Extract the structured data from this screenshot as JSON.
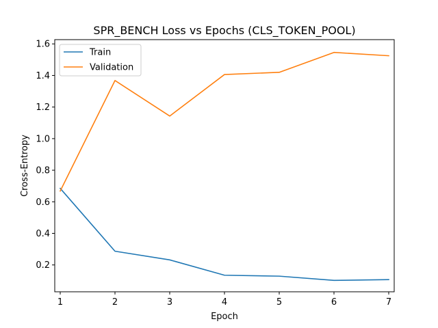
{
  "chart_data": {
    "type": "line",
    "title": "SPR_BENCH Loss vs Epochs (CLS_TOKEN_POOL)",
    "xlabel": "Epoch",
    "ylabel": "Cross-Entropy",
    "x": [
      1,
      2,
      3,
      4,
      5,
      6,
      7
    ],
    "xlim": [
      0.9,
      7.1
    ],
    "ylim": [
      0.03,
      1.627
    ],
    "xticks": [
      1,
      2,
      3,
      4,
      5,
      6,
      7
    ],
    "yticks": [
      0.2,
      0.4,
      0.6,
      0.8,
      1.0,
      1.2,
      1.4,
      1.6
    ],
    "ytick_labels": [
      "0.2",
      "0.4",
      "0.6",
      "0.8",
      "1.0",
      "1.2",
      "1.4",
      "1.6"
    ],
    "grid": false,
    "legend_position": "top-left",
    "series": [
      {
        "name": "Train",
        "color": "#1f77b4",
        "values": [
          0.685,
          0.287,
          0.232,
          0.135,
          0.129,
          0.102,
          0.107
        ]
      },
      {
        "name": "Validation",
        "color": "#ff7f0e",
        "values": [
          0.668,
          1.368,
          1.143,
          1.406,
          1.42,
          1.546,
          1.525
        ]
      }
    ]
  }
}
